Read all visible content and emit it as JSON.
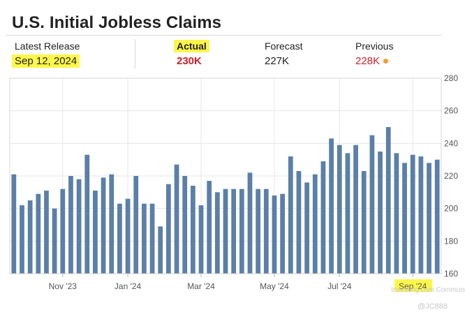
{
  "title": "U.S. Initial Jobless Claims",
  "stats": {
    "latest_release": {
      "label": "Latest Release",
      "value": "Sep 12, 2024"
    },
    "actual": {
      "label": "Actual",
      "value": "230K"
    },
    "forecast": {
      "label": "Forecast",
      "value": "227K"
    },
    "previous": {
      "label": "Previous",
      "value": "228K"
    }
  },
  "colors": {
    "bar": "#5b7fa8",
    "actual_value": "#d0202a",
    "previous_value": "#d0202a",
    "previous_dot": "#f0a030",
    "highlight": "#fdf64a",
    "grid": "#e6e6e6",
    "axis_text": "#555555"
  },
  "watermark": {
    "text_1": "Investing.com Community",
    "text_2": "@JC888"
  },
  "chart_data": {
    "type": "bar",
    "title": "U.S. Initial Jobless Claims",
    "xlabel": "",
    "ylabel": "",
    "ylim": [
      160,
      280
    ],
    "y_ticks": [
      160,
      180,
      200,
      220,
      240,
      260,
      280
    ],
    "y_axis_side": "right",
    "grid": true,
    "x_tick_labels": [
      {
        "label": "Nov '23",
        "index": 6
      },
      {
        "label": "Jan '24",
        "index": 14
      },
      {
        "label": "Mar '24",
        "index": 23
      },
      {
        "label": "May '24",
        "index": 32
      },
      {
        "label": "Jul '24",
        "index": 40
      },
      {
        "label": "Sep '24",
        "index": 49
      }
    ],
    "values": [
      221,
      202,
      205,
      209,
      211,
      200,
      212,
      220,
      218,
      233,
      211,
      219,
      221,
      203,
      206,
      220,
      203,
      203,
      189,
      215,
      227,
      220,
      214,
      202,
      217,
      210,
      212,
      212,
      212,
      222,
      212,
      212,
      208,
      209,
      232,
      223,
      216,
      221,
      229,
      243,
      239,
      234,
      239,
      223,
      245,
      235,
      250,
      234,
      228,
      233,
      232,
      228,
      230
    ]
  }
}
